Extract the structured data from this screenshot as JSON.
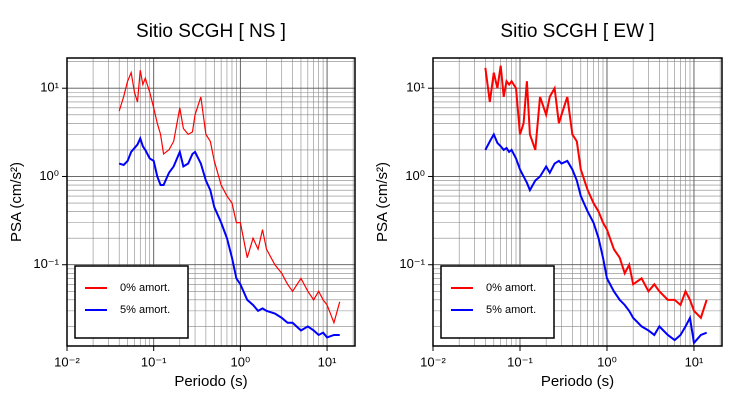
{
  "chart_data": [
    {
      "type": "line",
      "title": "Sitio SCGH [ NS ]",
      "x_label": "Periodo (s)",
      "y_label": "PSA (cm/s²)",
      "log_x": true,
      "log_y": true,
      "grid": true,
      "legend": "lower left",
      "xlim": [
        0.01,
        21
      ],
      "ylim": [
        0.012,
        22
      ],
      "xticks": [
        {
          "value": 0.01,
          "label": "10⁻²"
        },
        {
          "value": 0.1,
          "label": "10⁻¹"
        },
        {
          "value": 1,
          "label": "10⁰"
        },
        {
          "value": 10,
          "label": "10¹"
        }
      ],
      "yticks": [
        {
          "value": 0.1,
          "label": "10⁻¹"
        },
        {
          "value": 1,
          "label": "10⁰"
        },
        {
          "value": 10,
          "label": "10¹"
        }
      ],
      "x": [
        0.04,
        0.045,
        0.05,
        0.055,
        0.06,
        0.065,
        0.07,
        0.075,
        0.08,
        0.09,
        0.1,
        0.11,
        0.12,
        0.13,
        0.15,
        0.17,
        0.2,
        0.22,
        0.25,
        0.28,
        0.3,
        0.35,
        0.4,
        0.45,
        0.5,
        0.6,
        0.7,
        0.8,
        0.9,
        1.0,
        1.2,
        1.4,
        1.6,
        1.8,
        2,
        2.5,
        3,
        3.5,
        4,
        5,
        6,
        7,
        8,
        9,
        10,
        12,
        14
      ],
      "series": [
        {
          "name": "0% amort.",
          "color": "#ff0000",
          "width": 1.2,
          "values": [
            5.5,
            8,
            12,
            15,
            9,
            7,
            16,
            11,
            13,
            9,
            6,
            4,
            3,
            1.8,
            2,
            2.5,
            6,
            3.5,
            3,
            3.2,
            5,
            8,
            3,
            2.5,
            1.5,
            0.8,
            0.6,
            0.5,
            0.3,
            0.3,
            0.12,
            0.2,
            0.15,
            0.25,
            0.15,
            0.1,
            0.08,
            0.06,
            0.05,
            0.07,
            0.05,
            0.04,
            0.05,
            0.04,
            0.035,
            0.022,
            0.038
          ]
        },
        {
          "name": "5% amort.",
          "color": "#0000ff",
          "width": 2,
          "values": [
            1.4,
            1.35,
            1.5,
            1.9,
            2.1,
            2.3,
            2.7,
            2.2,
            2.0,
            1.6,
            1.5,
            1.0,
            0.8,
            0.8,
            1.1,
            1.3,
            1.9,
            1.3,
            1.4,
            1.8,
            1.9,
            1.4,
            0.9,
            0.7,
            0.45,
            0.3,
            0.2,
            0.12,
            0.07,
            0.06,
            0.04,
            0.035,
            0.03,
            0.032,
            0.03,
            0.028,
            0.025,
            0.022,
            0.022,
            0.018,
            0.02,
            0.018,
            0.016,
            0.017,
            0.015,
            0.016,
            0.016
          ]
        }
      ]
    },
    {
      "type": "line",
      "title": "Sitio SCGH [ EW ]",
      "x_label": "Periodo (s)",
      "y_label": "PSA (cm/s²)",
      "log_x": true,
      "log_y": true,
      "grid": true,
      "legend": "lower left",
      "xlim": [
        0.01,
        21
      ],
      "ylim": [
        0.012,
        22
      ],
      "xticks": [
        {
          "value": 0.01,
          "label": "10⁻²"
        },
        {
          "value": 0.1,
          "label": "10⁻¹"
        },
        {
          "value": 1,
          "label": "10⁰"
        },
        {
          "value": 10,
          "label": "10¹"
        }
      ],
      "yticks": [
        {
          "value": 0.1,
          "label": "10⁻¹"
        },
        {
          "value": 1,
          "label": "10⁰"
        },
        {
          "value": 10,
          "label": "10¹"
        }
      ],
      "x": [
        0.04,
        0.045,
        0.05,
        0.055,
        0.06,
        0.065,
        0.07,
        0.075,
        0.08,
        0.09,
        0.1,
        0.11,
        0.12,
        0.13,
        0.15,
        0.17,
        0.2,
        0.22,
        0.25,
        0.28,
        0.3,
        0.35,
        0.4,
        0.45,
        0.5,
        0.6,
        0.7,
        0.8,
        0.9,
        1.0,
        1.2,
        1.4,
        1.6,
        1.8,
        2,
        2.5,
        3,
        3.5,
        4,
        5,
        6,
        7,
        8,
        9,
        10,
        12,
        14
      ],
      "series": [
        {
          "name": "0% amort.",
          "color": "#ff0000",
          "width": 2,
          "values": [
            17,
            7,
            15,
            10,
            18,
            8,
            12,
            11,
            12,
            10,
            3,
            4,
            12,
            3,
            2,
            8,
            5,
            8,
            10,
            4,
            5,
            8,
            3,
            2.5,
            1.2,
            0.7,
            0.5,
            0.4,
            0.3,
            0.25,
            0.15,
            0.12,
            0.08,
            0.1,
            0.06,
            0.07,
            0.05,
            0.06,
            0.05,
            0.04,
            0.04,
            0.035,
            0.05,
            0.04,
            0.03,
            0.025,
            0.04
          ]
        },
        {
          "name": "5% amort.",
          "color": "#0000ff",
          "width": 2,
          "values": [
            2,
            2.5,
            3,
            2.4,
            2.2,
            2.0,
            2.1,
            1.9,
            2.0,
            1.6,
            1.2,
            1.0,
            0.85,
            0.7,
            0.9,
            1.0,
            1.3,
            1.1,
            1.4,
            1.5,
            1.4,
            1.5,
            1.2,
            0.9,
            0.6,
            0.4,
            0.3,
            0.2,
            0.12,
            0.07,
            0.05,
            0.04,
            0.035,
            0.03,
            0.025,
            0.02,
            0.018,
            0.016,
            0.02,
            0.016,
            0.014,
            0.016,
            0.02,
            0.025,
            0.013,
            0.016,
            0.017
          ]
        }
      ]
    }
  ]
}
